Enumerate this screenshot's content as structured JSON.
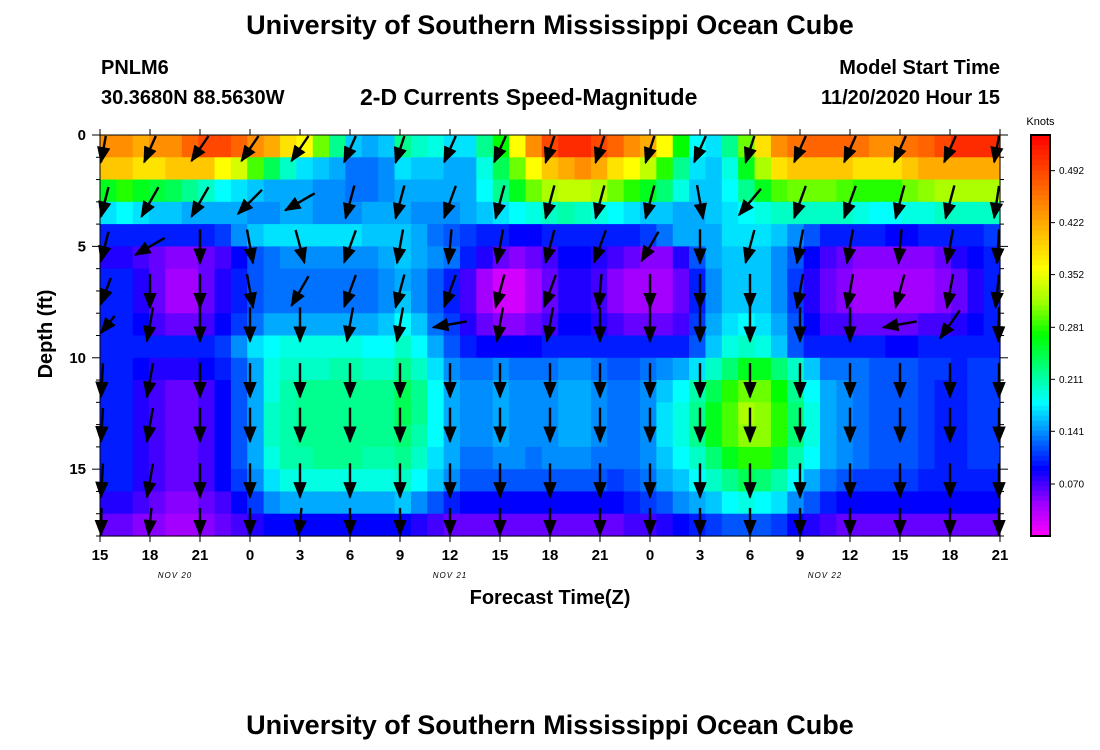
{
  "header": {
    "title": "University of Southern Mississippi Ocean Cube",
    "station_id": "PNLM6",
    "station_coords": "30.3680N 88.5630W",
    "subtitle": "2-D Currents Speed-Magnitude",
    "model_start_label": "Model Start Time",
    "model_start_value": "11/20/2020 Hour 15"
  },
  "footer": {
    "title": "University of Southern Mississippi Ocean Cube"
  },
  "chart_data": {
    "type": "heatmap",
    "xlabel": "Forecast Time(Z)",
    "ylabel": "Depth (ft)",
    "x_range_hours": [
      0,
      54
    ],
    "x_tick_labels": [
      "15",
      "18",
      "21",
      "0",
      "3",
      "6",
      "9",
      "12",
      "15",
      "18",
      "21",
      "0",
      "3",
      "6",
      "9",
      "12",
      "15",
      "18",
      "21"
    ],
    "date_labels": [
      {
        "text": "NOV 20",
        "hour": 4.5
      },
      {
        "text": "NOV 21",
        "hour": 21
      },
      {
        "text": "NOV 22",
        "hour": 43.5
      }
    ],
    "y_range": [
      0,
      18
    ],
    "y_ticks": [
      0,
      5,
      10,
      15
    ],
    "y_inverted": true,
    "colorbar": {
      "title": "Knots",
      "min": 0.0,
      "max": 0.54,
      "tick_values": [
        0.07,
        0.141,
        0.211,
        0.281,
        0.352,
        0.422,
        0.492
      ],
      "tick_labels": [
        "0.070",
        "0.141",
        "0.211",
        "0.281",
        "0.352",
        "0.422",
        "0.492"
      ],
      "colors": [
        "#ff00ff",
        "#9900ff",
        "#0000ff",
        "#0080ff",
        "#00ffff",
        "#00ff80",
        "#00ff00",
        "#a0ff00",
        "#ffff00",
        "#ffc000",
        "#ff8000",
        "#ff4000",
        "#ff0000"
      ]
    },
    "depth_levels": [
      0.5,
      1.5,
      2.5,
      3.5,
      4.5,
      5.5,
      6.5,
      7.5,
      8.5,
      9.5,
      10.5,
      11.5,
      12.5,
      13.5,
      14.5,
      15.5,
      16.5,
      17.5
    ],
    "speed_grid": [
      [
        0.44,
        0.44,
        0.42,
        0.44,
        0.44,
        0.47,
        0.49,
        0.49,
        0.47,
        0.44,
        0.42,
        0.38,
        0.36,
        0.3,
        0.22,
        0.16,
        0.15,
        0.16,
        0.22,
        0.2,
        0.19,
        0.17,
        0.17,
        0.22,
        0.27,
        0.36,
        0.44,
        0.49,
        0.51,
        0.51,
        0.49,
        0.47,
        0.44,
        0.42,
        0.36,
        0.27,
        0.18,
        0.17,
        0.22,
        0.3,
        0.38,
        0.44,
        0.46,
        0.47,
        0.47,
        0.47,
        0.46,
        0.44,
        0.44,
        0.46,
        0.47,
        0.49,
        0.51,
        0.51,
        0.51
      ],
      [
        0.4,
        0.4,
        0.38,
        0.38,
        0.4,
        0.4,
        0.4,
        0.36,
        0.34,
        0.29,
        0.24,
        0.2,
        0.17,
        0.16,
        0.15,
        0.13,
        0.13,
        0.14,
        0.17,
        0.16,
        0.16,
        0.15,
        0.15,
        0.19,
        0.24,
        0.3,
        0.36,
        0.4,
        0.42,
        0.44,
        0.42,
        0.38,
        0.36,
        0.33,
        0.28,
        0.22,
        0.17,
        0.16,
        0.19,
        0.26,
        0.32,
        0.38,
        0.4,
        0.4,
        0.4,
        0.4,
        0.38,
        0.38,
        0.38,
        0.4,
        0.42,
        0.42,
        0.42,
        0.42,
        0.42
      ],
      [
        0.26,
        0.28,
        0.26,
        0.25,
        0.24,
        0.22,
        0.2,
        0.18,
        0.17,
        0.16,
        0.15,
        0.15,
        0.15,
        0.14,
        0.14,
        0.13,
        0.13,
        0.14,
        0.15,
        0.15,
        0.15,
        0.15,
        0.15,
        0.18,
        0.22,
        0.26,
        0.3,
        0.32,
        0.33,
        0.33,
        0.32,
        0.3,
        0.28,
        0.26,
        0.23,
        0.19,
        0.16,
        0.16,
        0.18,
        0.22,
        0.26,
        0.29,
        0.3,
        0.3,
        0.3,
        0.29,
        0.28,
        0.28,
        0.28,
        0.3,
        0.31,
        0.32,
        0.32,
        0.32,
        0.32
      ],
      [
        0.17,
        0.18,
        0.17,
        0.16,
        0.16,
        0.15,
        0.15,
        0.15,
        0.15,
        0.14,
        0.14,
        0.15,
        0.15,
        0.14,
        0.14,
        0.14,
        0.15,
        0.15,
        0.15,
        0.14,
        0.14,
        0.14,
        0.15,
        0.16,
        0.17,
        0.18,
        0.19,
        0.2,
        0.21,
        0.2,
        0.19,
        0.18,
        0.17,
        0.16,
        0.16,
        0.15,
        0.15,
        0.16,
        0.17,
        0.18,
        0.19,
        0.2,
        0.2,
        0.2,
        0.2,
        0.2,
        0.19,
        0.18,
        0.18,
        0.19,
        0.19,
        0.2,
        0.2,
        0.2,
        0.2
      ],
      [
        0.1,
        0.1,
        0.1,
        0.1,
        0.1,
        0.1,
        0.1,
        0.11,
        0.14,
        0.16,
        0.17,
        0.17,
        0.17,
        0.17,
        0.17,
        0.17,
        0.16,
        0.16,
        0.16,
        0.15,
        0.13,
        0.12,
        0.11,
        0.1,
        0.1,
        0.09,
        0.09,
        0.1,
        0.1,
        0.1,
        0.1,
        0.1,
        0.1,
        0.11,
        0.13,
        0.15,
        0.15,
        0.15,
        0.17,
        0.17,
        0.17,
        0.16,
        0.14,
        0.12,
        0.1,
        0.1,
        0.1,
        0.1,
        0.09,
        0.09,
        0.1,
        0.1,
        0.1,
        0.1,
        0.11
      ],
      [
        0.08,
        0.08,
        0.07,
        0.06,
        0.05,
        0.05,
        0.06,
        0.07,
        0.09,
        0.12,
        0.13,
        0.14,
        0.14,
        0.14,
        0.14,
        0.14,
        0.14,
        0.15,
        0.16,
        0.15,
        0.14,
        0.13,
        0.1,
        0.08,
        0.06,
        0.05,
        0.06,
        0.07,
        0.09,
        0.09,
        0.08,
        0.07,
        0.06,
        0.05,
        0.05,
        0.08,
        0.12,
        0.15,
        0.16,
        0.16,
        0.16,
        0.14,
        0.12,
        0.09,
        0.07,
        0.06,
        0.05,
        0.05,
        0.05,
        0.05,
        0.05,
        0.06,
        0.08,
        0.09,
        0.1
      ],
      [
        0.1,
        0.1,
        0.08,
        0.06,
        0.04,
        0.04,
        0.06,
        0.08,
        0.1,
        0.12,
        0.13,
        0.13,
        0.13,
        0.13,
        0.13,
        0.13,
        0.13,
        0.14,
        0.15,
        0.14,
        0.12,
        0.1,
        0.07,
        0.04,
        0.02,
        0.02,
        0.04,
        0.06,
        0.08,
        0.08,
        0.07,
        0.05,
        0.04,
        0.04,
        0.04,
        0.06,
        0.1,
        0.14,
        0.16,
        0.16,
        0.16,
        0.14,
        0.11,
        0.08,
        0.06,
        0.05,
        0.04,
        0.04,
        0.04,
        0.04,
        0.04,
        0.05,
        0.06,
        0.08,
        0.1
      ],
      [
        0.1,
        0.1,
        0.08,
        0.06,
        0.04,
        0.04,
        0.06,
        0.08,
        0.1,
        0.12,
        0.13,
        0.13,
        0.13,
        0.13,
        0.13,
        0.13,
        0.13,
        0.14,
        0.16,
        0.14,
        0.12,
        0.1,
        0.07,
        0.04,
        0.02,
        0.02,
        0.04,
        0.06,
        0.08,
        0.08,
        0.07,
        0.05,
        0.04,
        0.04,
        0.04,
        0.06,
        0.1,
        0.14,
        0.16,
        0.16,
        0.16,
        0.14,
        0.11,
        0.08,
        0.06,
        0.05,
        0.04,
        0.04,
        0.04,
        0.04,
        0.04,
        0.05,
        0.06,
        0.08,
        0.1
      ],
      [
        0.1,
        0.1,
        0.09,
        0.07,
        0.06,
        0.06,
        0.07,
        0.09,
        0.11,
        0.13,
        0.15,
        0.15,
        0.15,
        0.15,
        0.15,
        0.15,
        0.15,
        0.16,
        0.18,
        0.16,
        0.13,
        0.11,
        0.08,
        0.06,
        0.05,
        0.05,
        0.06,
        0.07,
        0.09,
        0.09,
        0.08,
        0.07,
        0.06,
        0.06,
        0.06,
        0.07,
        0.11,
        0.15,
        0.17,
        0.18,
        0.17,
        0.15,
        0.12,
        0.09,
        0.07,
        0.07,
        0.06,
        0.06,
        0.06,
        0.06,
        0.07,
        0.07,
        0.08,
        0.09,
        0.1
      ],
      [
        0.1,
        0.1,
        0.1,
        0.1,
        0.1,
        0.1,
        0.1,
        0.11,
        0.14,
        0.17,
        0.18,
        0.19,
        0.19,
        0.19,
        0.19,
        0.19,
        0.18,
        0.18,
        0.2,
        0.18,
        0.15,
        0.12,
        0.1,
        0.09,
        0.09,
        0.09,
        0.09,
        0.1,
        0.1,
        0.1,
        0.1,
        0.1,
        0.1,
        0.1,
        0.1,
        0.1,
        0.12,
        0.16,
        0.19,
        0.2,
        0.19,
        0.16,
        0.12,
        0.1,
        0.1,
        0.1,
        0.1,
        0.1,
        0.09,
        0.09,
        0.1,
        0.1,
        0.1,
        0.1,
        0.1
      ],
      [
        0.1,
        0.1,
        0.09,
        0.08,
        0.08,
        0.08,
        0.09,
        0.1,
        0.12,
        0.15,
        0.19,
        0.2,
        0.2,
        0.2,
        0.21,
        0.21,
        0.2,
        0.2,
        0.22,
        0.2,
        0.17,
        0.14,
        0.13,
        0.13,
        0.14,
        0.13,
        0.13,
        0.13,
        0.14,
        0.14,
        0.13,
        0.12,
        0.12,
        0.13,
        0.14,
        0.15,
        0.17,
        0.2,
        0.23,
        0.26,
        0.26,
        0.23,
        0.2,
        0.16,
        0.13,
        0.13,
        0.13,
        0.12,
        0.12,
        0.12,
        0.11,
        0.11,
        0.1,
        0.11,
        0.11
      ],
      [
        0.1,
        0.1,
        0.08,
        0.07,
        0.06,
        0.06,
        0.07,
        0.09,
        0.12,
        0.15,
        0.19,
        0.21,
        0.22,
        0.22,
        0.22,
        0.22,
        0.22,
        0.22,
        0.24,
        0.22,
        0.18,
        0.15,
        0.14,
        0.14,
        0.15,
        0.14,
        0.14,
        0.14,
        0.15,
        0.15,
        0.14,
        0.13,
        0.13,
        0.14,
        0.16,
        0.18,
        0.21,
        0.24,
        0.28,
        0.3,
        0.3,
        0.27,
        0.22,
        0.18,
        0.15,
        0.14,
        0.13,
        0.12,
        0.12,
        0.12,
        0.11,
        0.1,
        0.1,
        0.11,
        0.11
      ],
      [
        0.1,
        0.1,
        0.08,
        0.07,
        0.06,
        0.06,
        0.07,
        0.09,
        0.12,
        0.15,
        0.2,
        0.21,
        0.22,
        0.22,
        0.22,
        0.22,
        0.22,
        0.22,
        0.24,
        0.22,
        0.18,
        0.15,
        0.14,
        0.14,
        0.15,
        0.14,
        0.14,
        0.14,
        0.15,
        0.15,
        0.14,
        0.13,
        0.13,
        0.14,
        0.17,
        0.19,
        0.22,
        0.26,
        0.29,
        0.32,
        0.31,
        0.28,
        0.23,
        0.19,
        0.15,
        0.14,
        0.13,
        0.12,
        0.12,
        0.12,
        0.11,
        0.1,
        0.1,
        0.11,
        0.11
      ],
      [
        0.1,
        0.1,
        0.08,
        0.07,
        0.06,
        0.06,
        0.07,
        0.09,
        0.12,
        0.15,
        0.2,
        0.21,
        0.22,
        0.22,
        0.22,
        0.22,
        0.22,
        0.22,
        0.23,
        0.21,
        0.18,
        0.15,
        0.14,
        0.14,
        0.15,
        0.14,
        0.14,
        0.14,
        0.15,
        0.15,
        0.14,
        0.13,
        0.13,
        0.14,
        0.17,
        0.19,
        0.22,
        0.26,
        0.29,
        0.31,
        0.31,
        0.28,
        0.23,
        0.19,
        0.15,
        0.14,
        0.13,
        0.12,
        0.12,
        0.12,
        0.11,
        0.1,
        0.1,
        0.11,
        0.11
      ],
      [
        0.1,
        0.1,
        0.08,
        0.07,
        0.06,
        0.06,
        0.07,
        0.09,
        0.12,
        0.15,
        0.19,
        0.21,
        0.21,
        0.22,
        0.22,
        0.22,
        0.21,
        0.21,
        0.22,
        0.2,
        0.17,
        0.15,
        0.13,
        0.13,
        0.14,
        0.14,
        0.13,
        0.14,
        0.14,
        0.14,
        0.13,
        0.13,
        0.13,
        0.14,
        0.16,
        0.18,
        0.2,
        0.23,
        0.26,
        0.28,
        0.28,
        0.25,
        0.21,
        0.18,
        0.15,
        0.14,
        0.13,
        0.12,
        0.12,
        0.12,
        0.11,
        0.1,
        0.1,
        0.11,
        0.11
      ],
      [
        0.1,
        0.1,
        0.08,
        0.07,
        0.06,
        0.06,
        0.07,
        0.09,
        0.11,
        0.14,
        0.17,
        0.19,
        0.19,
        0.19,
        0.19,
        0.19,
        0.19,
        0.19,
        0.2,
        0.18,
        0.16,
        0.14,
        0.12,
        0.12,
        0.12,
        0.12,
        0.12,
        0.12,
        0.12,
        0.12,
        0.12,
        0.11,
        0.12,
        0.13,
        0.15,
        0.16,
        0.18,
        0.2,
        0.22,
        0.24,
        0.23,
        0.21,
        0.18,
        0.15,
        0.13,
        0.12,
        0.11,
        0.11,
        0.11,
        0.11,
        0.1,
        0.1,
        0.1,
        0.1,
        0.1
      ],
      [
        0.08,
        0.08,
        0.07,
        0.06,
        0.05,
        0.05,
        0.06,
        0.07,
        0.09,
        0.11,
        0.14,
        0.15,
        0.15,
        0.15,
        0.15,
        0.15,
        0.15,
        0.15,
        0.16,
        0.14,
        0.12,
        0.1,
        0.09,
        0.09,
        0.09,
        0.09,
        0.09,
        0.09,
        0.09,
        0.09,
        0.09,
        0.09,
        0.1,
        0.11,
        0.12,
        0.14,
        0.15,
        0.16,
        0.18,
        0.19,
        0.18,
        0.17,
        0.14,
        0.12,
        0.1,
        0.09,
        0.09,
        0.09,
        0.09,
        0.09,
        0.09,
        0.09,
        0.09,
        0.09,
        0.09
      ],
      [
        0.06,
        0.06,
        0.05,
        0.05,
        0.04,
        0.04,
        0.05,
        0.06,
        0.07,
        0.08,
        0.09,
        0.09,
        0.09,
        0.09,
        0.09,
        0.09,
        0.09,
        0.09,
        0.09,
        0.08,
        0.07,
        0.06,
        0.06,
        0.06,
        0.06,
        0.06,
        0.06,
        0.06,
        0.06,
        0.06,
        0.06,
        0.06,
        0.07,
        0.07,
        0.08,
        0.09,
        0.1,
        0.11,
        0.12,
        0.12,
        0.12,
        0.11,
        0.09,
        0.08,
        0.07,
        0.06,
        0.06,
        0.06,
        0.06,
        0.06,
        0.06,
        0.06,
        0.06,
        0.06,
        0.06
      ]
    ],
    "vectors": {
      "x_hours": [
        0,
        3,
        6,
        9,
        12,
        15,
        18,
        21,
        24,
        27,
        30,
        33,
        36,
        39,
        42,
        45,
        48,
        51,
        54
      ],
      "depths": [
        0.5,
        3,
        5,
        7,
        8.5,
        11,
        13,
        15.5,
        17.5
      ],
      "angles_deg": [
        [
          200,
          200,
          210,
          210,
          210,
          200,
          195,
          200,
          200,
          195,
          195,
          195,
          200,
          195,
          200,
          200,
          200,
          200,
          200
        ],
        [
          210,
          210,
          210,
          225,
          240,
          195,
          195,
          200,
          195,
          195,
          195,
          195,
          170,
          220,
          200,
          200,
          195,
          195,
          200
        ],
        [
          210,
          240,
          180,
          170,
          165,
          200,
          190,
          185,
          190,
          195,
          200,
          210,
          180,
          195,
          190,
          190,
          185,
          190,
          190
        ],
        [
          220,
          180,
          180,
          170,
          210,
          200,
          195,
          200,
          195,
          200,
          185,
          180,
          180,
          180,
          190,
          190,
          195,
          190,
          195
        ],
        [
          240,
          190,
          180,
          180,
          180,
          190,
          190,
          260,
          190,
          190,
          180,
          180,
          180,
          180,
          180,
          180,
          260,
          215,
          185
        ],
        [
          190,
          190,
          180,
          180,
          180,
          180,
          180,
          180,
          180,
          180,
          180,
          180,
          180,
          180,
          180,
          180,
          180,
          180,
          180
        ],
        [
          190,
          190,
          180,
          180,
          180,
          180,
          180,
          180,
          180,
          180,
          180,
          180,
          180,
          180,
          180,
          180,
          180,
          180,
          180
        ],
        [
          190,
          190,
          180,
          180,
          180,
          180,
          180,
          180,
          180,
          180,
          180,
          180,
          180,
          180,
          180,
          180,
          180,
          180,
          180
        ],
        [
          185,
          185,
          180,
          180,
          185,
          180,
          180,
          180,
          180,
          180,
          180,
          180,
          180,
          180,
          180,
          180,
          180,
          180,
          180
        ]
      ]
    }
  }
}
